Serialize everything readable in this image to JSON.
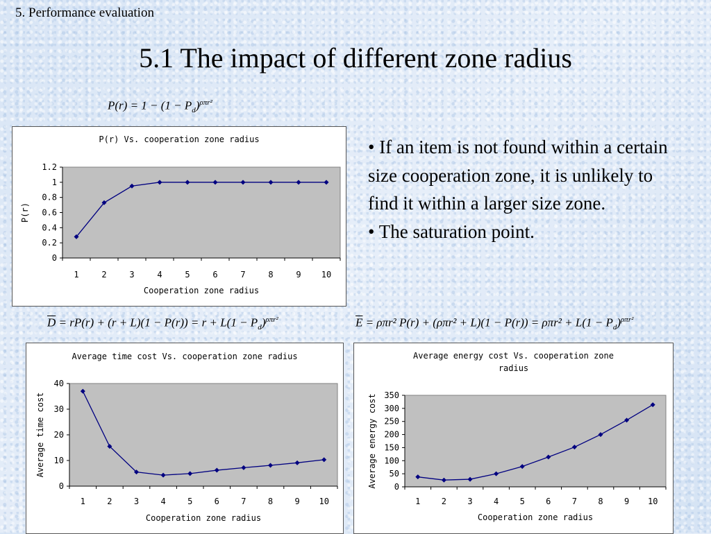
{
  "header": {
    "section": "5. Performance evaluation",
    "title": "5.1 The impact of different zone radius"
  },
  "formulas": {
    "pr": "P(r) = 1 − (1 − P",
    "pr_sub": "d",
    "pr_close": ")",
    "pr_sup": "ρπr²",
    "d_bar": "D",
    "d_rest": " = rP(r) + (r + L)(1 − P(r)) = r + L(1 − P",
    "d_sub": "d",
    "d_close": ")",
    "d_sup": "ρπr²",
    "e_bar": "E",
    "e_rest": " = ρπr² P(r) + (ρπr² + L)(1 − P(r)) = ρπr² + L(1 − P",
    "e_sub": "d",
    "e_close": ")",
    "e_sup": "ρπr²"
  },
  "bullets": [
    "• If an item is not found within a certain size cooperation zone, it is unlikely to find it within a larger size zone.",
    "• The saturation point."
  ],
  "colors": {
    "plot_bg": "#c0c0c0",
    "series": "#000080"
  },
  "chart_data": [
    {
      "type": "line",
      "title": "P(r) Vs. cooperation zone radius",
      "xlabel": "Cooperation zone radius",
      "ylabel": "P(r)",
      "x": [
        1,
        2,
        3,
        4,
        5,
        6,
        7,
        8,
        9,
        10
      ],
      "values": [
        0.28,
        0.73,
        0.95,
        1.0,
        1.0,
        1.0,
        1.0,
        1.0,
        1.0,
        1.0
      ],
      "ylim": [
        0,
        1.2
      ],
      "yticks": [
        "0",
        "0.2",
        "0.4",
        "0.6",
        "0.8",
        "1",
        "1.2"
      ],
      "grid": false
    },
    {
      "type": "line",
      "title": "Average time cost Vs. cooperation zone radius",
      "xlabel": "Cooperation zone radius",
      "ylabel": "Average time cost",
      "x": [
        1,
        2,
        3,
        4,
        5,
        6,
        7,
        8,
        9,
        10
      ],
      "values": [
        37,
        15.5,
        5.5,
        4.3,
        4.9,
        6.2,
        7.2,
        8.1,
        9.1,
        10.3
      ],
      "ylim": [
        0,
        40
      ],
      "yticks": [
        "0",
        "10",
        "20",
        "30",
        "40"
      ],
      "grid": false
    },
    {
      "type": "line",
      "title": "Average energy cost Vs. cooperation zone radius",
      "xlabel": "Cooperation zone radius",
      "ylabel": "Average energy cost",
      "x": [
        1,
        2,
        3,
        4,
        5,
        6,
        7,
        8,
        9,
        10
      ],
      "values": [
        38,
        26,
        29,
        50,
        78,
        114,
        152,
        200,
        255,
        314
      ],
      "ylim": [
        0,
        350
      ],
      "yticks": [
        "0",
        "50",
        "100",
        "150",
        "200",
        "250",
        "300",
        "350"
      ],
      "grid": false
    }
  ]
}
